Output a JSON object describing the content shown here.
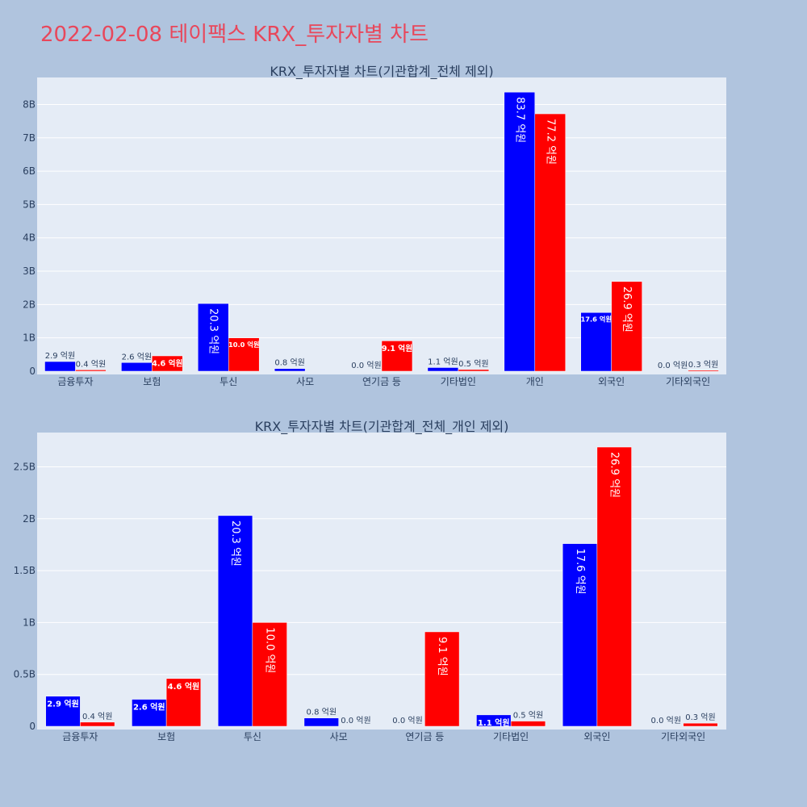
{
  "title": "2022-02-08 테이팩스 KRX_투자자별 차트",
  "colors": {
    "background": "#b0c4de",
    "plot_bg": "#e5ecf6",
    "title": "#e8475b",
    "buy": "#0000ff",
    "sell": "#ff0000",
    "text": "#2a3f5f"
  },
  "chart_data": [
    {
      "type": "bar",
      "title": "KRX_투자자별 차트(기관합계_전체 제외)",
      "categories": [
        "금융투자",
        "보험",
        "투신",
        "사모",
        "연기금 등",
        "기타법인",
        "개인",
        "외국인",
        "기타외국인"
      ],
      "series": [
        {
          "color": "#0000ff",
          "values": [
            290000000,
            260000000,
            2030000000,
            80000000,
            0,
            110000000,
            8370000000,
            1760000000,
            0
          ],
          "labels": [
            "2.9 억원",
            "2.6 억원",
            "20.3 억원",
            "0.8 억원",
            "0.0 억원",
            "1.1 억원",
            "83.7 억원",
            "17.6 억원",
            "0.0 억원"
          ]
        },
        {
          "color": "#ff0000",
          "values": [
            40000000,
            460000000,
            1000000000,
            0,
            910000000,
            50000000,
            7720000000,
            2690000000,
            30000000
          ],
          "labels": [
            "0.4 억원",
            "4.6 억원",
            "10.0 억원",
            "",
            "9.1 억원",
            "0.5 억원",
            "77.2 억원",
            "26.9 억원",
            "0.3 억원"
          ]
        }
      ],
      "yticks": [
        {
          "value": 0,
          "label": "0"
        },
        {
          "value": 1000000000,
          "label": "1B"
        },
        {
          "value": 2000000000,
          "label": "2B"
        },
        {
          "value": 3000000000,
          "label": "3B"
        },
        {
          "value": 4000000000,
          "label": "4B"
        },
        {
          "value": 5000000000,
          "label": "5B"
        },
        {
          "value": 6000000000,
          "label": "6B"
        },
        {
          "value": 7000000000,
          "label": "7B"
        },
        {
          "value": 8000000000,
          "label": "8B"
        }
      ],
      "ylim": [
        0,
        8810000000
      ],
      "grid": true
    },
    {
      "type": "bar",
      "title": "KRX_투자자별 차트(기관합계_전체_개인 제외)",
      "categories": [
        "금융투자",
        "보험",
        "투신",
        "사모",
        "연기금 등",
        "기타법인",
        "외국인",
        "기타외국인"
      ],
      "series": [
        {
          "color": "#0000ff",
          "values": [
            290000000,
            260000000,
            2030000000,
            80000000,
            0,
            110000000,
            1760000000,
            0
          ],
          "labels": [
            "2.9 억원",
            "2.6 억원",
            "20.3 억원",
            "0.8 억원",
            "0.0 억원",
            "1.1 억원",
            "17.6 억원",
            "0.0 억원"
          ]
        },
        {
          "color": "#ff0000",
          "values": [
            40000000,
            460000000,
            1000000000,
            0,
            910000000,
            50000000,
            2690000000,
            30000000
          ],
          "labels": [
            "0.4 억원",
            "4.6 억원",
            "10.0 억원",
            "0.0 억원",
            "9.1 억원",
            "0.5 억원",
            "26.9 억원",
            "0.3 억원"
          ]
        }
      ],
      "yticks": [
        {
          "value": 0,
          "label": "0"
        },
        {
          "value": 500000000,
          "label": "0.5B"
        },
        {
          "value": 1000000000,
          "label": "1B"
        },
        {
          "value": 1500000000,
          "label": "1.5B"
        },
        {
          "value": 2000000000,
          "label": "2B"
        },
        {
          "value": 2500000000,
          "label": "2.5B"
        }
      ],
      "ylim": [
        0,
        2830000000
      ],
      "grid": true
    }
  ]
}
